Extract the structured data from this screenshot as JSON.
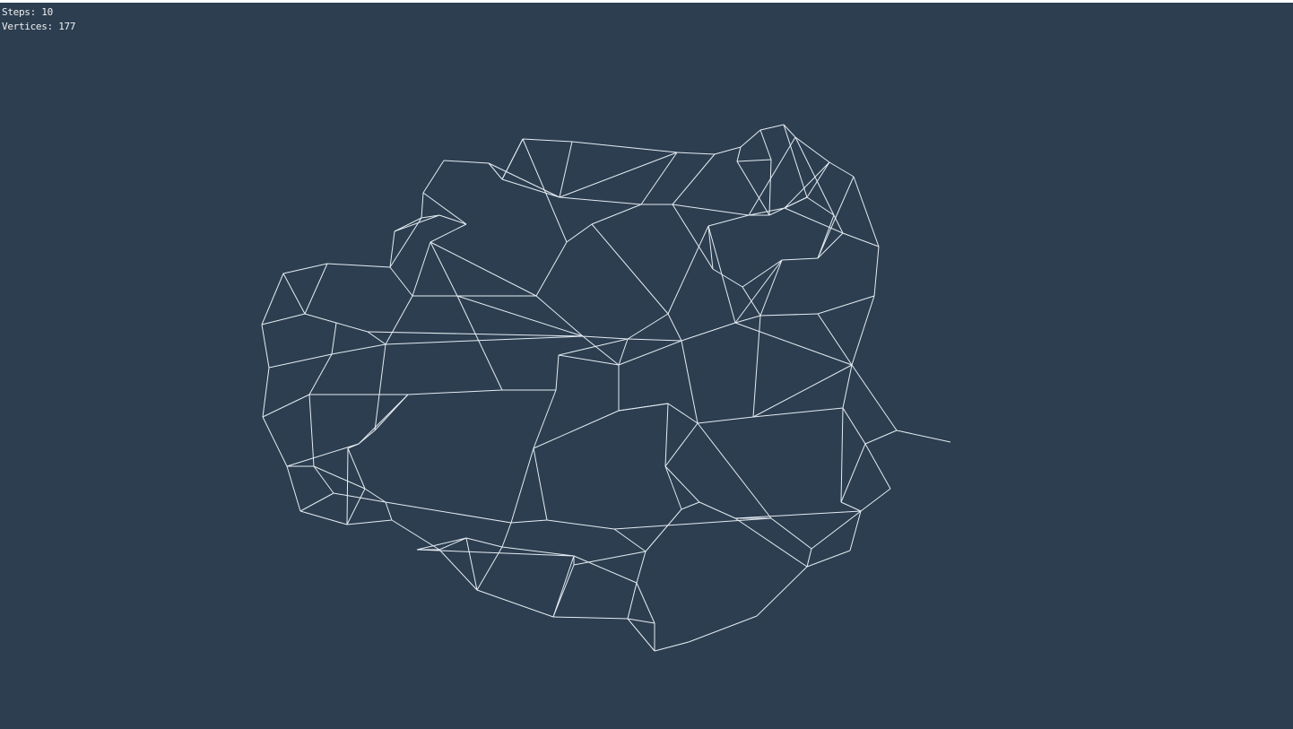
{
  "hud": {
    "steps_label": "Steps:",
    "steps_value": "10",
    "vertices_label": "Vertices:",
    "vertices_value": "177"
  },
  "colors": {
    "background": "#2c3e50",
    "wire": "#e6ecf2",
    "hud_text": "#f0f0f0"
  }
}
